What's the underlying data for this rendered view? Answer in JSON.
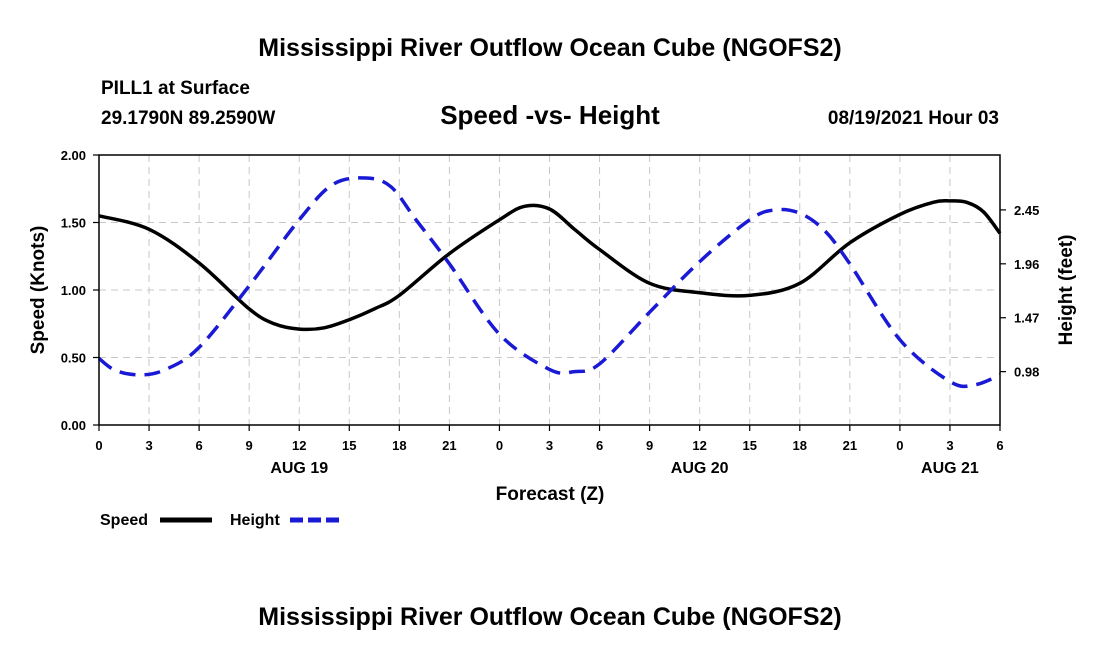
{
  "header": {
    "title_top": "Mississippi River Outflow Ocean Cube (NGOFS2)",
    "title_bottom": "Mississippi River Outflow Ocean Cube (NGOFS2)",
    "station": "PILL1 at Surface",
    "coords": "29.1790N  89.2590W",
    "center_title": "Speed -vs- Height",
    "datetime": "08/19/2021 Hour 03"
  },
  "colors": {
    "speed": "#000000",
    "height": "#1a1ad6",
    "grid": "#c8c8c8"
  },
  "chart_data": {
    "type": "line",
    "title": "Speed -vs- Height",
    "xlabel": "Forecast (Z)",
    "ylabel_left": "Speed (Knots)",
    "ylabel_right": "Height (feet)",
    "xlim": [
      0,
      54
    ],
    "x_ticks": [
      0,
      3,
      6,
      9,
      12,
      15,
      18,
      21,
      24,
      27,
      30,
      33,
      36,
      39,
      42,
      45,
      48,
      51,
      54
    ],
    "x_tick_labels": [
      "0",
      "3",
      "6",
      "9",
      "12",
      "15",
      "18",
      "21",
      "0",
      "3",
      "6",
      "9",
      "12",
      "15",
      "18",
      "21",
      "0",
      "3",
      "6"
    ],
    "day_labels": [
      {
        "x": 12,
        "label": "AUG 19"
      },
      {
        "x": 36,
        "label": "AUG 20"
      },
      {
        "x": 51,
        "label": "AUG 21"
      }
    ],
    "ylim_left": [
      0,
      2
    ],
    "y_ticks_left": [
      0,
      0.5,
      1.0,
      1.5,
      2.0
    ],
    "y_tick_labels_left": [
      "0.00",
      "0.50",
      "1.00",
      "1.50",
      "2.00"
    ],
    "ylim_right": [
      0.495,
      2.949
    ],
    "y_ticks_right": [
      0.98,
      1.47,
      1.96,
      2.45
    ],
    "y_tick_labels_right": [
      "0.98",
      "1.47",
      "1.96",
      "2.45"
    ],
    "legend_position": "bottom-left",
    "series": [
      {
        "name": "Speed",
        "axis": "left",
        "style": "solid",
        "x": [
          0,
          3,
          6,
          9,
          10.5,
          12,
          13.5,
          15,
          16.5,
          18,
          21,
          24,
          25.5,
          27,
          28.5,
          30,
          33,
          36,
          39,
          42,
          45,
          48,
          50,
          51,
          52,
          53,
          54
        ],
        "y": [
          1.55,
          1.45,
          1.2,
          0.86,
          0.75,
          0.71,
          0.72,
          0.78,
          0.86,
          0.96,
          1.27,
          1.52,
          1.62,
          1.6,
          1.45,
          1.3,
          1.05,
          0.98,
          0.96,
          1.05,
          1.35,
          1.56,
          1.65,
          1.66,
          1.65,
          1.58,
          1.42
        ]
      },
      {
        "name": "Height",
        "axis": "right",
        "style": "dashed",
        "x": [
          0,
          1,
          2.5,
          4,
          6,
          9,
          12,
          14,
          16,
          17.5,
          19,
          21,
          24,
          27,
          28.5,
          30,
          33,
          36,
          39,
          40.5,
          42,
          43.5,
          45,
          48,
          51,
          52.5,
          54
        ],
        "y": [
          1.1,
          0.99,
          0.95,
          1.0,
          1.2,
          1.76,
          2.36,
          2.68,
          2.74,
          2.66,
          2.36,
          1.96,
          1.32,
          1.0,
          0.98,
          1.05,
          1.52,
          1.98,
          2.36,
          2.45,
          2.42,
          2.26,
          1.96,
          1.27,
          0.89,
          0.86,
          0.95
        ]
      }
    ]
  }
}
